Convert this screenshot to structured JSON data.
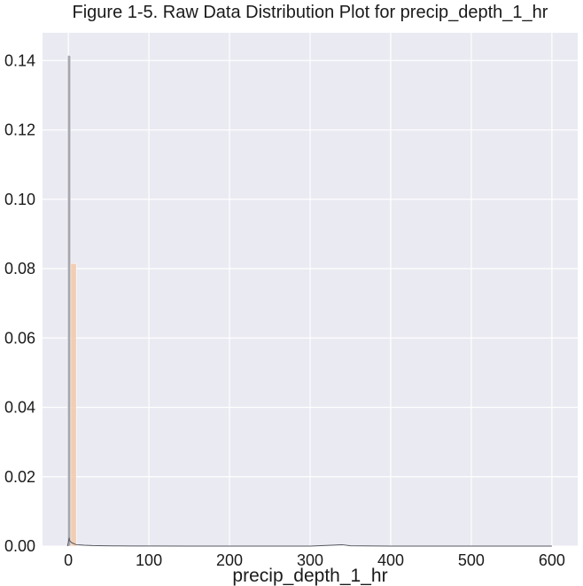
{
  "chart_data": {
    "type": "bar",
    "title": "Figure 1-5.  Raw Data Distribution Plot for precip_depth_1_hr",
    "xlabel": "precip_depth_1_hr",
    "ylabel": "",
    "xlim": [
      -32,
      632
    ],
    "ylim": [
      0,
      0.148
    ],
    "xticks": [
      0,
      100,
      200,
      300,
      400,
      500,
      600
    ],
    "yticks": [
      0.0,
      0.02,
      0.04,
      0.06,
      0.08,
      0.1,
      0.12,
      0.14
    ],
    "xtick_labels": [
      "0",
      "100",
      "200",
      "300",
      "400",
      "500",
      "600"
    ],
    "ytick_labels": [
      "0.00",
      "0.02",
      "0.04",
      "0.06",
      "0.08",
      "0.10",
      "0.12",
      "0.14"
    ],
    "grid": true,
    "series": [
      {
        "kind": "histogram",
        "color": "#9a9aa6",
        "bins": [
          {
            "x0": -1,
            "x1": 3,
            "value": 0.1415
          }
        ]
      },
      {
        "kind": "histogram",
        "color": "#f2c9a8",
        "bins": [
          {
            "x0": 3,
            "x1": 10,
            "value": 0.0815
          }
        ]
      },
      {
        "kind": "density",
        "color": "#555560",
        "x": [
          -1,
          0,
          1,
          2,
          4,
          6,
          8,
          10,
          14,
          20,
          30,
          45,
          60,
          80,
          100,
          150,
          200,
          300,
          330,
          340,
          350,
          400,
          600
        ],
        "y": [
          0.0,
          0.0012,
          0.0022,
          0.0015,
          0.001,
          0.0008,
          0.0006,
          0.0004,
          0.00035,
          0.00025,
          0.00015,
          0.0001,
          6e-05,
          3e-05,
          2e-05,
          1e-05,
          1e-05,
          1e-05,
          0.0003,
          0.0004,
          0.0001,
          0.0,
          0.0
        ]
      }
    ],
    "colors": {
      "plot_background": "#eaeaf2",
      "grid": "#ffffff",
      "text": "#1a1a1a"
    }
  }
}
